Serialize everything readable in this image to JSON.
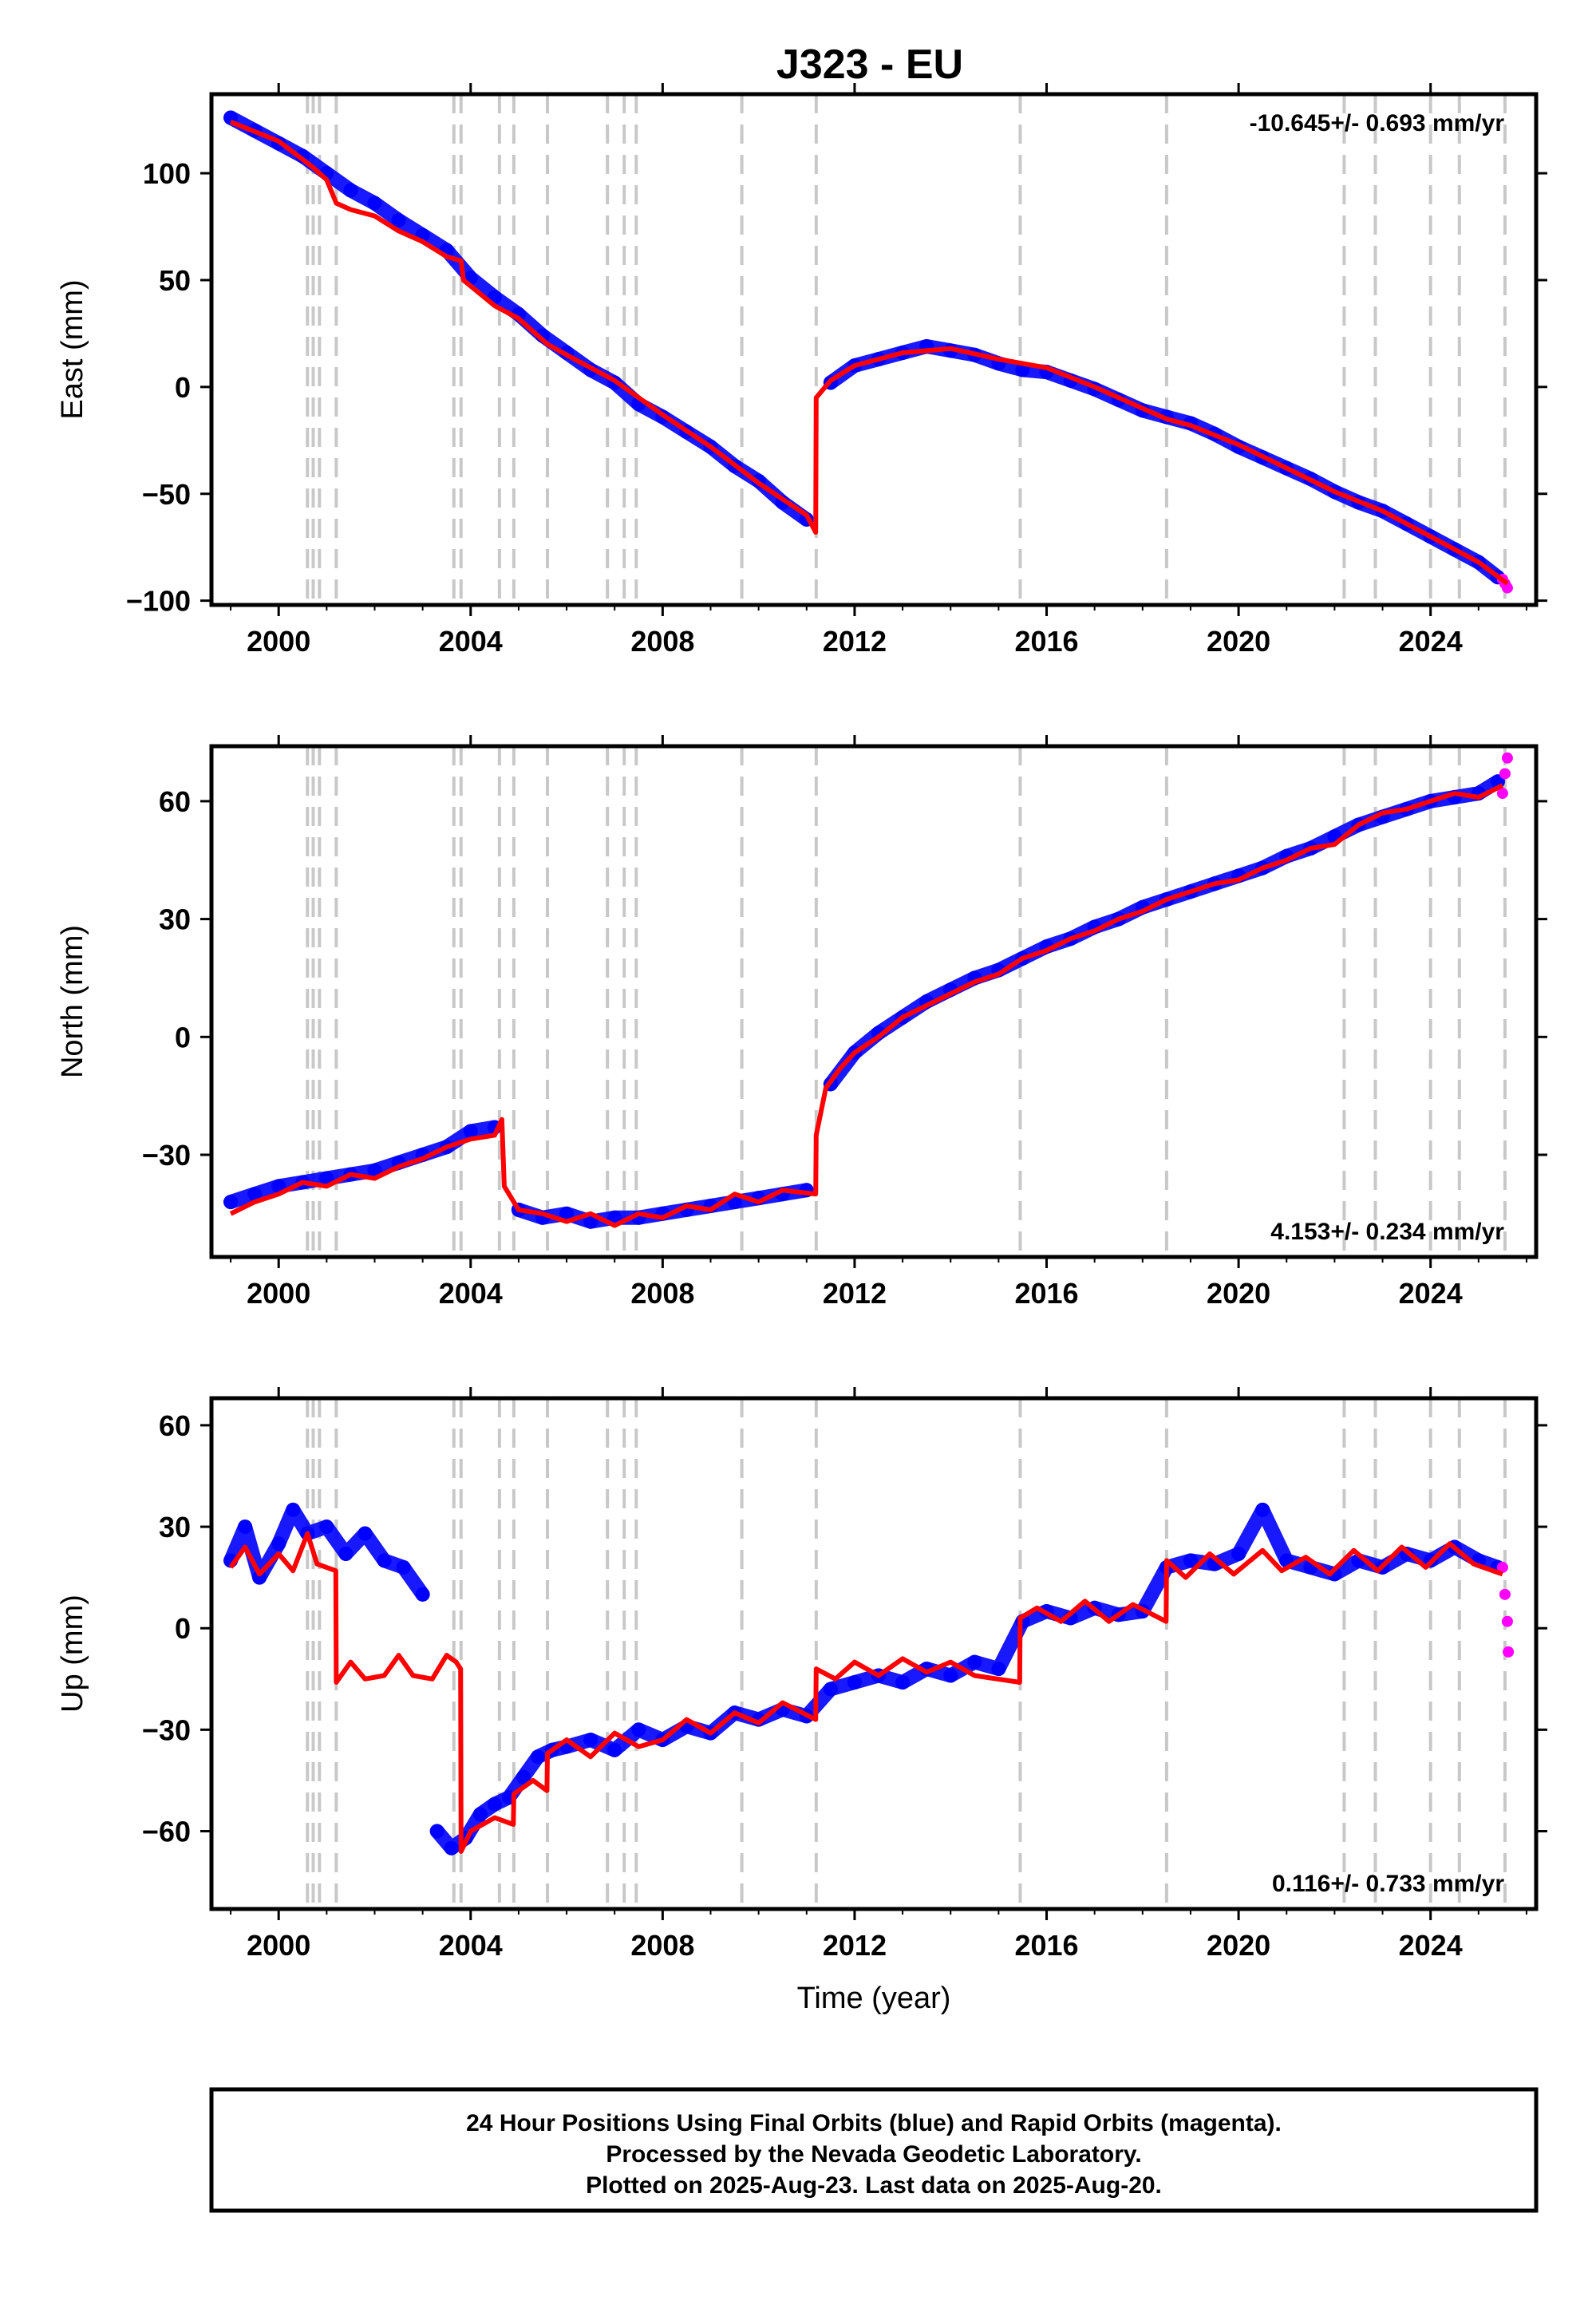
{
  "title": "J323 - EU",
  "xlabel": "Time (year)",
  "footer": {
    "lines": [
      "24 Hour Positions Using Final Orbits (blue) and Rapid Orbits (magenta).",
      "Processed by the Nevada Geodetic Laboratory.",
      "Plotted on 2025-Aug-23. Last data on 2025-Aug-20."
    ]
  },
  "colors": {
    "final": "#0000ff",
    "rapid": "#ff00ff",
    "model": "#ff0000",
    "event_line": "#c8c8c8"
  },
  "event_lines": [
    2000.6,
    2000.72,
    2000.85,
    2001.2,
    2003.65,
    2003.8,
    2004.6,
    2004.9,
    2005.6,
    2006.85,
    2007.2,
    2007.45,
    2009.65,
    2011.2,
    2015.45,
    2018.5,
    2022.2,
    2022.85,
    2024.0,
    2024.6,
    2025.55
  ],
  "chart_data": [
    {
      "type": "scatter",
      "component": "east",
      "ylabel": "East (mm)",
      "rate_label": "-10.645+/- 0.693 mm/yr",
      "rate_position": "top-right",
      "xlim": [
        1998.6,
        2026.2
      ],
      "ylim": [
        -102,
        137
      ],
      "x_ticks": [
        2000,
        2004,
        2008,
        2012,
        2016,
        2020,
        2024
      ],
      "x_tick_labels": [
        "2000",
        "2004",
        "2008",
        "2012",
        "2016",
        "2020",
        "2024"
      ],
      "y_ticks": [
        -100,
        -50,
        0,
        50,
        100
      ],
      "y_tick_labels": [
        "−100",
        "−50",
        "0",
        "50",
        "100"
      ],
      "model_fit": {
        "x": [
          1999.0,
          2000.0,
          2000.7,
          2001.0,
          2001.2,
          2001.5,
          2002.0,
          2002.5,
          2003.0,
          2003.5,
          2003.8,
          2003.85,
          2004.5,
          2005.0,
          2005.6,
          2006.0,
          2007.0,
          2008.0,
          2009.0,
          2010.0,
          2011.0,
          2011.19,
          2011.2,
          2011.5,
          2012.0,
          2013.0,
          2014.0,
          2015.0,
          2016.0,
          2017.0,
          2018.0,
          2018.5,
          2019.0,
          2020.0,
          2021.0,
          2022.0,
          2023.0,
          2024.0,
          2025.0,
          2025.6
        ],
        "y": [
          124,
          115,
          103,
          97,
          86,
          83,
          80,
          73,
          68,
          61,
          59,
          50,
          38,
          32,
          20,
          15,
          3,
          -13,
          -28,
          -45,
          -60,
          -68,
          -5,
          3,
          10,
          16,
          18,
          13,
          9,
          0,
          -10,
          -15,
          -18,
          -27,
          -38,
          -49,
          -58,
          -70,
          -82,
          -92
        ]
      },
      "final_points": {
        "x": [
          1999.0,
          1999.5,
          2000.0,
          2000.5,
          2001.0,
          2001.5,
          2002.0,
          2002.5,
          2003.0,
          2003.5,
          2004.0,
          2004.5,
          2005.0,
          2005.5,
          2006.0,
          2006.5,
          2007.0,
          2007.5,
          2008.0,
          2008.5,
          2009.0,
          2009.5,
          2010.0,
          2010.5,
          2011.0,
          2011.5,
          2012.0,
          2012.5,
          2013.0,
          2013.5,
          2014.0,
          2014.5,
          2015.0,
          2015.5,
          2016.0,
          2016.5,
          2017.0,
          2017.5,
          2018.0,
          2018.5,
          2019.0,
          2019.5,
          2020.0,
          2020.5,
          2021.0,
          2021.5,
          2022.0,
          2022.5,
          2023.0,
          2023.5,
          2024.0,
          2024.5,
          2025.0,
          2025.4
        ],
        "y": [
          126,
          120,
          114,
          108,
          100,
          92,
          86,
          78,
          71,
          64,
          51,
          42,
          34,
          24,
          16,
          8,
          2,
          -8,
          -14,
          -21,
          -28,
          -37,
          -44,
          -54,
          -62,
          2,
          10,
          13,
          16,
          19,
          17,
          15,
          11,
          8,
          7,
          3,
          -1,
          -6,
          -11,
          -14,
          -17,
          -22,
          -28,
          -33,
          -38,
          -43,
          -49,
          -54,
          -58,
          -64,
          -70,
          -76,
          -82,
          -89
        ]
      },
      "rapid_points": {
        "x": [
          2025.5,
          2025.55,
          2025.6
        ],
        "y": [
          -90,
          -92,
          -94
        ]
      }
    },
    {
      "type": "scatter",
      "component": "north",
      "ylabel": "North (mm)",
      "rate_label": "4.153+/- 0.234 mm/yr",
      "rate_position": "bottom-right",
      "xlim": [
        1998.6,
        2026.2
      ],
      "ylim": [
        -56,
        74
      ],
      "x_ticks": [
        2000,
        2004,
        2008,
        2012,
        2016,
        2020,
        2024
      ],
      "x_tick_labels": [
        "2000",
        "2004",
        "2008",
        "2012",
        "2016",
        "2020",
        "2024"
      ],
      "y_ticks": [
        -30,
        0,
        30,
        60
      ],
      "y_tick_labels": [
        "−30",
        "0",
        "30",
        "60"
      ],
      "model_fit": {
        "x": [
          1999.0,
          1999.5,
          2000.0,
          2000.5,
          2001.0,
          2001.5,
          2002.0,
          2002.5,
          2003.0,
          2003.5,
          2004.0,
          2004.5,
          2004.65,
          2004.7,
          2005.0,
          2005.5,
          2006.0,
          2006.5,
          2007.0,
          2007.5,
          2008.0,
          2008.5,
          2009.0,
          2009.5,
          2010.0,
          2010.5,
          2011.19,
          2011.2,
          2011.4,
          2011.7,
          2012.0,
          2012.5,
          2013.0,
          2013.5,
          2014.0,
          2014.5,
          2015.0,
          2015.5,
          2016.0,
          2016.5,
          2017.0,
          2017.5,
          2018.0,
          2018.5,
          2019.0,
          2019.5,
          2020.0,
          2020.5,
          2021.0,
          2021.5,
          2022.0,
          2022.5,
          2023.0,
          2023.5,
          2024.0,
          2024.5,
          2025.0,
          2025.5
        ],
        "y": [
          -45,
          -42,
          -40,
          -37,
          -38,
          -35,
          -36,
          -33,
          -31,
          -28,
          -26,
          -25,
          -21,
          -38,
          -44,
          -45,
          -47,
          -45,
          -48,
          -45,
          -46,
          -43,
          -44,
          -40,
          -42,
          -39,
          -40,
          -25,
          -13,
          -8,
          -4,
          0,
          5,
          8,
          11,
          14,
          16,
          20,
          22,
          25,
          27,
          30,
          32,
          35,
          37,
          39,
          40,
          43,
          45,
          48,
          49,
          54,
          57,
          58,
          60,
          62,
          61,
          64
        ]
      },
      "final_points": {
        "x": [
          1999.0,
          1999.5,
          2000.0,
          2000.5,
          2001.0,
          2001.5,
          2002.0,
          2002.5,
          2003.0,
          2003.5,
          2004.0,
          2004.5,
          2005.0,
          2005.5,
          2006.0,
          2006.5,
          2007.0,
          2007.5,
          2008.0,
          2008.5,
          2009.0,
          2009.5,
          2010.0,
          2010.5,
          2011.0,
          2011.5,
          2012.0,
          2012.5,
          2013.0,
          2013.5,
          2014.0,
          2014.5,
          2015.0,
          2015.5,
          2016.0,
          2016.5,
          2017.0,
          2017.5,
          2018.0,
          2018.5,
          2019.0,
          2019.5,
          2020.0,
          2020.5,
          2021.0,
          2021.5,
          2022.0,
          2022.5,
          2023.0,
          2023.5,
          2024.0,
          2024.5,
          2025.0,
          2025.4
        ],
        "y": [
          -42,
          -40,
          -38,
          -37,
          -36,
          -35,
          -34,
          -32,
          -30,
          -28,
          -24,
          -23,
          -44,
          -46,
          -45,
          -47,
          -46,
          -46,
          -45,
          -44,
          -43,
          -42,
          -41,
          -40,
          -39,
          -12,
          -4,
          1,
          5,
          9,
          12,
          15,
          17,
          20,
          23,
          25,
          28,
          30,
          33,
          35,
          37,
          39,
          41,
          43,
          46,
          48,
          51,
          54,
          56,
          58,
          60,
          61,
          62,
          65
        ]
      },
      "rapid_points": {
        "x": [
          2025.5,
          2025.55,
          2025.6
        ],
        "y": [
          62,
          67,
          71
        ]
      }
    },
    {
      "type": "scatter",
      "component": "up",
      "ylabel": "Up (mm)",
      "rate_label": "0.116+/- 0.733 mm/yr",
      "rate_position": "bottom-right",
      "xlim": [
        1998.6,
        2026.2
      ],
      "ylim": [
        -83,
        68
      ],
      "x_ticks": [
        2000,
        2004,
        2008,
        2012,
        2016,
        2020,
        2024
      ],
      "x_tick_labels": [
        "2000",
        "2004",
        "2008",
        "2012",
        "2016",
        "2020",
        "2024"
      ],
      "y_ticks": [
        -60,
        -30,
        0,
        30,
        60
      ],
      "y_tick_labels": [
        "−60",
        "−30",
        "0",
        "30",
        "60"
      ],
      "model_fit": {
        "x": [
          1999.0,
          1999.3,
          1999.6,
          2000.0,
          2000.3,
          2000.6,
          2000.8,
          2001.19,
          2001.2,
          2001.5,
          2001.8,
          2002.2,
          2002.5,
          2002.8,
          2003.2,
          2003.5,
          2003.7,
          2003.79,
          2003.8,
          2004.0,
          2004.5,
          2004.89,
          2004.9,
          2005.3,
          2005.59,
          2005.6,
          2006.0,
          2006.5,
          2007.0,
          2007.5,
          2008.0,
          2008.5,
          2009.0,
          2009.5,
          2010.0,
          2010.5,
          2011.19,
          2011.2,
          2011.6,
          2012.0,
          2012.5,
          2013.0,
          2013.5,
          2014.0,
          2014.5,
          2015.44,
          2015.45,
          2015.8,
          2016.3,
          2016.8,
          2017.3,
          2017.8,
          2018.49,
          2018.5,
          2018.9,
          2019.4,
          2019.9,
          2020.5,
          2020.9,
          2021.4,
          2021.9,
          2022.4,
          2022.9,
          2023.4,
          2023.9,
          2024.4,
          2024.9,
          2025.5
        ],
        "y": [
          18,
          24,
          16,
          22,
          17,
          28,
          19,
          17,
          -16,
          -10,
          -15,
          -14,
          -8,
          -14,
          -15,
          -8,
          -10,
          -12,
          -66,
          -60,
          -56,
          -58,
          -49,
          -45,
          -48,
          -37,
          -33,
          -38,
          -31,
          -35,
          -33,
          -27,
          -31,
          -25,
          -28,
          -22,
          -27,
          -12,
          -15,
          -10,
          -14,
          -9,
          -13,
          -10,
          -14,
          -16,
          3,
          6,
          2,
          8,
          2,
          7,
          2,
          20,
          15,
          22,
          16,
          23,
          17,
          21,
          16,
          23,
          17,
          24,
          18,
          25,
          19,
          16
        ]
      },
      "final_points": {
        "x": [
          1999.0,
          1999.3,
          1999.6,
          2000.0,
          2000.3,
          2000.6,
          2001.0,
          2001.4,
          2001.8,
          2002.2,
          2002.6,
          2003.0,
          2003.3,
          2003.6,
          2003.9,
          2004.2,
          2004.5,
          2004.8,
          2005.1,
          2005.4,
          2005.7,
          2006.0,
          2006.5,
          2007.0,
          2007.5,
          2008.0,
          2008.5,
          2009.0,
          2009.5,
          2010.0,
          2010.5,
          2011.0,
          2011.5,
          2012.0,
          2012.5,
          2013.0,
          2013.5,
          2014.0,
          2014.5,
          2015.0,
          2015.5,
          2016.0,
          2016.5,
          2017.0,
          2017.5,
          2018.0,
          2018.5,
          2019.0,
          2019.5,
          2020.0,
          2020.5,
          2021.0,
          2021.5,
          2022.0,
          2022.5,
          2023.0,
          2023.5,
          2024.0,
          2024.5,
          2025.0,
          2025.4
        ],
        "y": [
          20,
          30,
          15,
          25,
          35,
          28,
          30,
          22,
          28,
          20,
          18,
          10,
          -60,
          -65,
          -62,
          -55,
          -52,
          -50,
          -44,
          -38,
          -36,
          -35,
          -33,
          -36,
          -30,
          -33,
          -29,
          -31,
          -25,
          -27,
          -24,
          -26,
          -18,
          -16,
          -14,
          -16,
          -12,
          -14,
          -10,
          -12,
          2,
          5,
          3,
          6,
          4,
          5,
          18,
          20,
          19,
          22,
          35,
          20,
          18,
          16,
          20,
          18,
          22,
          20,
          24,
          20,
          18
        ]
      },
      "rapid_points": {
        "x": [
          2025.5,
          2025.55,
          2025.6,
          2025.62
        ],
        "y": [
          18,
          10,
          2,
          -7
        ]
      }
    }
  ]
}
